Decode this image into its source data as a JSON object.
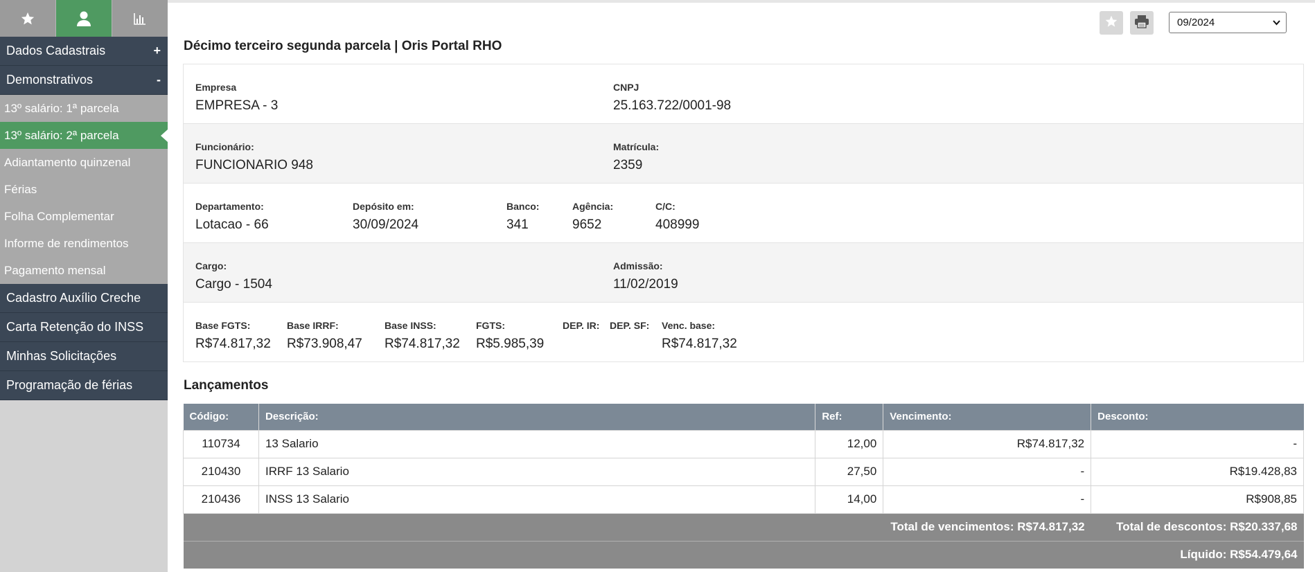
{
  "sidebar": {
    "tabs": [
      {
        "icon": "star-icon",
        "active": false
      },
      {
        "icon": "user-icon",
        "active": true
      },
      {
        "icon": "bar-chart-icon",
        "active": false
      }
    ],
    "dados_cadastrais": {
      "label": "Dados Cadastrais",
      "toggle": "+"
    },
    "demonstrativos": {
      "label": "Demonstrativos",
      "toggle": "-"
    },
    "sub_items": [
      "13º salário: 1ª parcela",
      "13º salário: 2ª parcela",
      "Adiantamento quinzenal",
      "Férias",
      "Folha Complementar",
      "Informe de rendimentos",
      "Pagamento mensal"
    ],
    "active_sub_index": 1,
    "bottom_items": [
      "Cadastro Auxílio Creche",
      "Carta Retenção do INSS",
      "Minhas Solicitações",
      "Programação de férias"
    ]
  },
  "header": {
    "title": "Décimo terceiro segunda parcela | Oris Portal RHO",
    "period": "09/2024"
  },
  "info": {
    "empresa": {
      "label": "Empresa",
      "value": "EMPRESA - 3"
    },
    "cnpj": {
      "label": "CNPJ",
      "value": "25.163.722/0001-98"
    },
    "funcionario": {
      "label": "Funcionário:",
      "value": "FUNCIONARIO 948"
    },
    "matricula": {
      "label": "Matrícula:",
      "value": "2359"
    },
    "departamento": {
      "label": "Departamento:",
      "value": "Lotacao - 66"
    },
    "deposito": {
      "label": "Depósito em:",
      "value": "30/09/2024"
    },
    "banco": {
      "label": "Banco:",
      "value": "341"
    },
    "agencia": {
      "label": "Agência:",
      "value": "9652"
    },
    "cc": {
      "label": "C/C:",
      "value": "408999"
    },
    "cargo": {
      "label": "Cargo:",
      "value": "Cargo - 1504"
    },
    "admissao": {
      "label": "Admissão:",
      "value": "11/02/2019"
    },
    "base_fgts": {
      "label": "Base FGTS:",
      "value": "R$74.817,32"
    },
    "base_irrf": {
      "label": "Base IRRF:",
      "value": "R$73.908,47"
    },
    "base_inss": {
      "label": "Base INSS:",
      "value": "R$74.817,32"
    },
    "fgts": {
      "label": "FGTS:",
      "value": "R$5.985,39"
    },
    "dep_ir": {
      "label": "DEP. IR:",
      "value": ""
    },
    "dep_sf": {
      "label": "DEP. SF:",
      "value": ""
    },
    "venc_base": {
      "label": "Venc. base:",
      "value": "R$74.817,32"
    }
  },
  "lancamentos": {
    "title": "Lançamentos",
    "columns": [
      "Código:",
      "Descrição:",
      "Ref:",
      "Vencimento:",
      "Desconto:"
    ],
    "rows": [
      {
        "codigo": "110734",
        "descricao": "13 Salario",
        "ref": "12,00",
        "vencimento": "R$74.817,32",
        "desconto": "-"
      },
      {
        "codigo": "210430",
        "descricao": "IRRF 13 Salario",
        "ref": "27,50",
        "vencimento": "-",
        "desconto": "R$19.428,83"
      },
      {
        "codigo": "210436",
        "descricao": "INSS 13 Salario",
        "ref": "14,00",
        "vencimento": "-",
        "desconto": "R$908,85"
      }
    ],
    "total_vencimentos": "Total de vencimentos: R$74.817,32",
    "total_descontos": "Total de descontos: R$20.337,68",
    "liquido": "Líquido: R$54.479,64"
  },
  "colors": {
    "nav_dark": "#3b4756",
    "accent_green": "#4f9a61",
    "sub_gray": "#a9a9a9",
    "table_header": "#7c8996",
    "total_row": "#8a8a8a"
  }
}
